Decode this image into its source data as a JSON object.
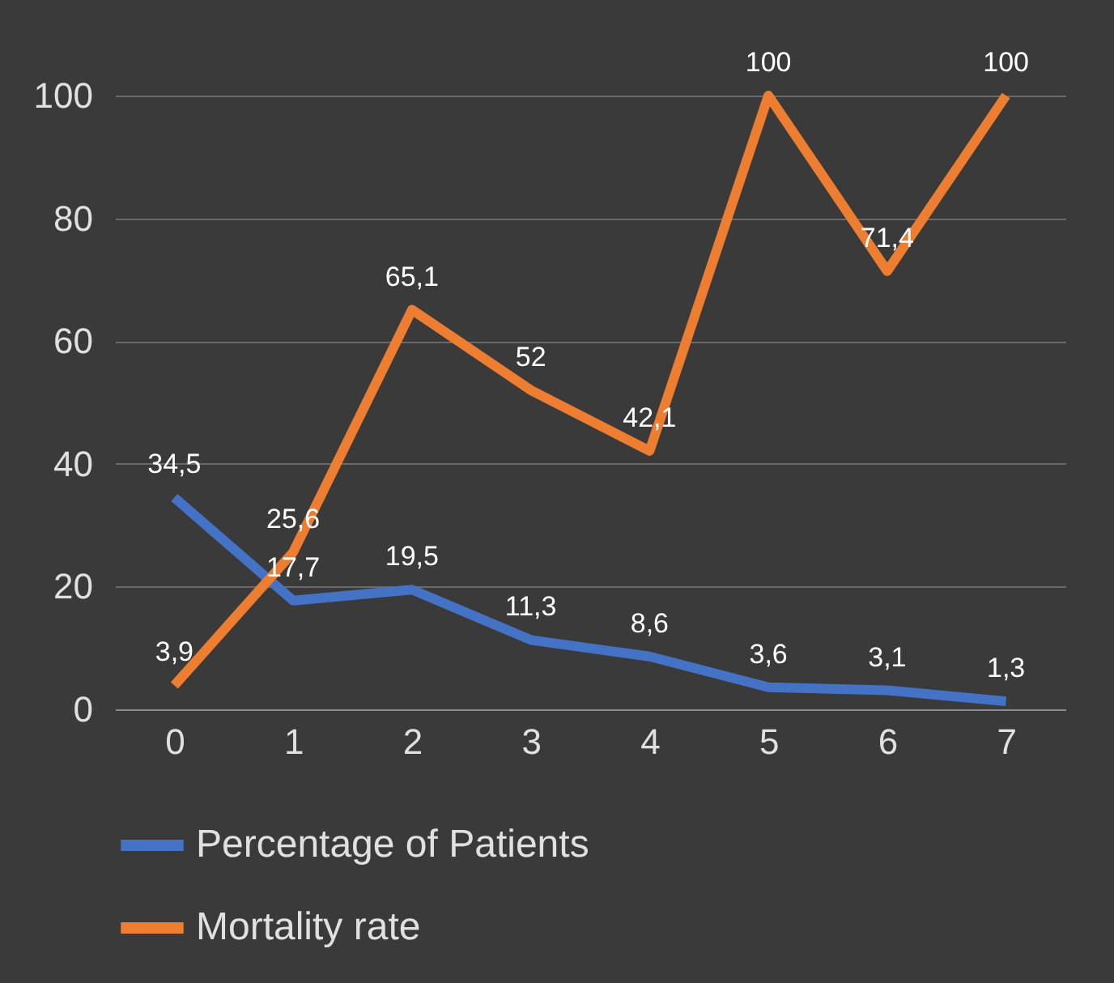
{
  "chart_data": {
    "type": "line",
    "categories": [
      "0",
      "1",
      "2",
      "3",
      "4",
      "5",
      "6",
      "7"
    ],
    "series": [
      {
        "name": "Percentage of Patients",
        "color": "#4472c4",
        "values": [
          34.5,
          17.7,
          19.5,
          11.3,
          8.6,
          3.6,
          3.1,
          1.3
        ],
        "value_labels": [
          "34,5",
          "17,7",
          "19,5",
          "11,3",
          "8,6",
          "3,6",
          "3,1",
          "1,3"
        ]
      },
      {
        "name": "Mortality rate",
        "color": "#ed7d31",
        "values": [
          3.9,
          25.6,
          65.1,
          52,
          42.1,
          100,
          71.4,
          100
        ],
        "value_labels": [
          "3,9",
          "25,6",
          "65,1",
          "52",
          "42,1",
          "100",
          "71,4",
          "100"
        ]
      }
    ],
    "ylim": [
      0,
      100
    ],
    "yticks": [
      0,
      20,
      40,
      60,
      80,
      100
    ],
    "grid": "y",
    "legend": "bottom",
    "marker": "none",
    "line_style": "solid"
  }
}
